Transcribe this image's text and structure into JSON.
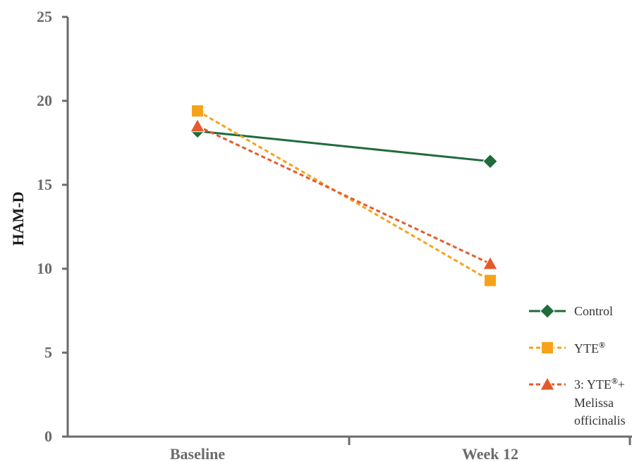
{
  "chart_data": {
    "type": "line",
    "title": "",
    "xlabel": "",
    "ylabel": "HAM-D",
    "categories": [
      "Baseline",
      "Week 12"
    ],
    "ylim": [
      0,
      25
    ],
    "yticks": [
      0,
      5,
      10,
      15,
      20,
      25
    ],
    "grid": false,
    "legend_position": "bottom-right",
    "series": [
      {
        "key": "control",
        "name": "Control",
        "values": [
          18.2,
          16.4
        ],
        "color": "#1f6b3a",
        "marker": "diamond",
        "dash": "solid"
      },
      {
        "key": "yte",
        "name": "YTE®",
        "values": [
          19.4,
          9.3
        ],
        "color": "#f7a21b",
        "marker": "square",
        "dash": "dashed"
      },
      {
        "key": "yte_melissa",
        "name": "3: YTE®+ Melissa officinalis",
        "values": [
          18.5,
          10.3
        ],
        "color": "#e55a2b",
        "marker": "triangle",
        "dash": "dashed"
      }
    ]
  },
  "legend": {
    "control": {
      "line1": "Control"
    },
    "yte": {
      "base": "YTE",
      "sup": "®"
    },
    "yte_melissa": {
      "prefix": "3: YTE",
      "sup": "®",
      "suffix": "+",
      "line2": "Melissa",
      "line3": "officinalis"
    }
  }
}
